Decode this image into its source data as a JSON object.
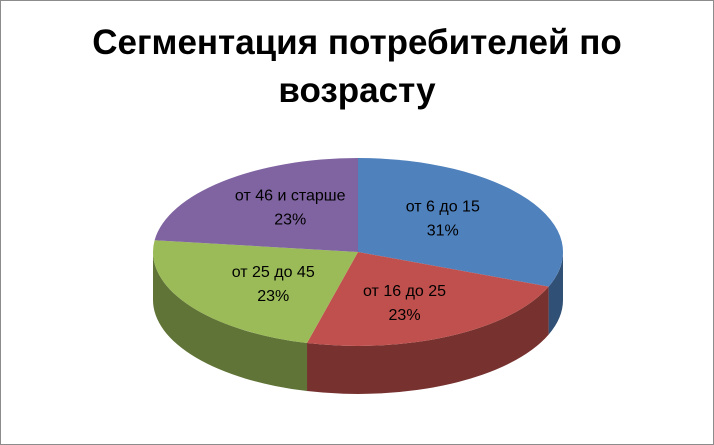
{
  "chart_data": {
    "type": "pie3d",
    "title": "Сегментация потребителей по возрасту",
    "categories": [
      "от 6 до 15",
      "от 16 до 25",
      "от 25 до 45",
      "от 46 и старше"
    ],
    "values": [
      31,
      23,
      23,
      23
    ],
    "value_labels": [
      "31%",
      "23%",
      "23%",
      "23%"
    ],
    "colors": [
      "#4f81bd",
      "#c0504d",
      "#9bbb59",
      "#8064a2"
    ]
  }
}
